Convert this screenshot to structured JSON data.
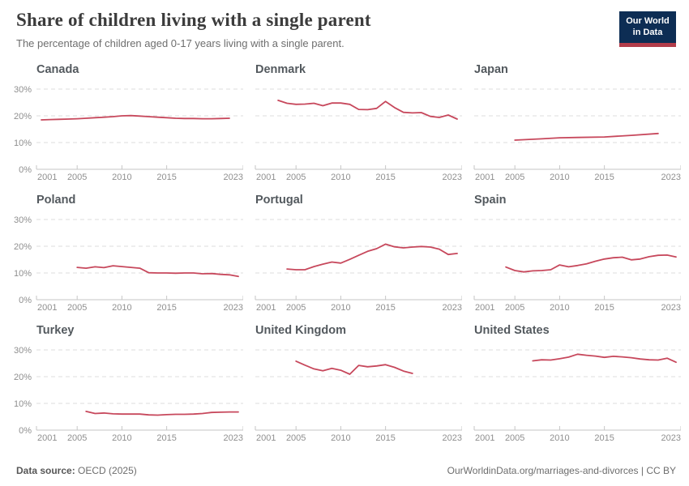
{
  "header": {
    "title": "Share of children living with a single parent",
    "subtitle": "The percentage of children aged 0-17 years living with a single parent.",
    "logo_line1": "Our World",
    "logo_line2": "in Data"
  },
  "footer": {
    "source_label": "Data source:",
    "source_value": "OECD (2025)",
    "citation": "OurWorldinData.org/marriages-and-divorces | CC BY"
  },
  "colors": {
    "line": "#c7485c",
    "grid": "#dedede",
    "axis": "#c6c6c6",
    "tick_label": "#8f8f8f",
    "facet_title": "#53595e",
    "logo_bg": "#0d2d54",
    "logo_red": "#b23c4a"
  },
  "chart_data": {
    "type": "line",
    "title": "Share of children living with a single parent",
    "subtitle": "The percentage of children aged 0-17 years living with a single parent.",
    "xlabel": "",
    "ylabel": "",
    "xlim": [
      2001,
      2023
    ],
    "ylim": [
      0,
      33
    ],
    "grid": "dashed horizontal at 10/20/30%",
    "legend": "none (one red series per facet)",
    "x_ticks": [
      2001,
      2005,
      2010,
      2015,
      2023
    ],
    "y_ticks": [
      0,
      10,
      20,
      30
    ],
    "y_tick_suffix": "%",
    "facets": [
      {
        "name": "Canada",
        "points": [
          [
            2001,
            18.5
          ],
          [
            2002,
            18.6
          ],
          [
            2003,
            18.7
          ],
          [
            2004,
            18.8
          ],
          [
            2005,
            18.9
          ],
          [
            2006,
            19.1
          ],
          [
            2007,
            19.3
          ],
          [
            2008,
            19.5
          ],
          [
            2009,
            19.7
          ],
          [
            2010,
            20.0
          ],
          [
            2011,
            20.1
          ],
          [
            2012,
            19.9
          ],
          [
            2013,
            19.7
          ],
          [
            2014,
            19.5
          ],
          [
            2015,
            19.3
          ],
          [
            2016,
            19.1
          ],
          [
            2017,
            19.0
          ],
          [
            2018,
            19.0
          ],
          [
            2019,
            18.9
          ],
          [
            2020,
            18.9
          ],
          [
            2021,
            19.0
          ],
          [
            2022,
            19.1
          ]
        ]
      },
      {
        "name": "Denmark",
        "points": [
          [
            2003,
            25.8
          ],
          [
            2004,
            24.7
          ],
          [
            2005,
            24.3
          ],
          [
            2006,
            24.4
          ],
          [
            2007,
            24.7
          ],
          [
            2008,
            23.8
          ],
          [
            2009,
            24.8
          ],
          [
            2010,
            24.8
          ],
          [
            2011,
            24.3
          ],
          [
            2012,
            22.4
          ],
          [
            2013,
            22.3
          ],
          [
            2014,
            22.8
          ],
          [
            2015,
            25.4
          ],
          [
            2016,
            23.1
          ],
          [
            2017,
            21.3
          ],
          [
            2018,
            21.1
          ],
          [
            2019,
            21.2
          ],
          [
            2020,
            19.8
          ],
          [
            2021,
            19.4
          ],
          [
            2022,
            20.3
          ],
          [
            2023,
            18.8
          ]
        ]
      },
      {
        "name": "Japan",
        "points": [
          [
            2005,
            10.9
          ],
          [
            2008,
            11.4
          ],
          [
            2010,
            11.8
          ],
          [
            2012,
            11.9
          ],
          [
            2015,
            12.1
          ],
          [
            2018,
            12.7
          ],
          [
            2021,
            13.4
          ]
        ]
      },
      {
        "name": "Poland",
        "points": [
          [
            2005,
            12.1
          ],
          [
            2006,
            11.8
          ],
          [
            2007,
            12.3
          ],
          [
            2008,
            12.0
          ],
          [
            2009,
            12.7
          ],
          [
            2010,
            12.4
          ],
          [
            2011,
            12.1
          ],
          [
            2012,
            11.8
          ],
          [
            2013,
            10.1
          ],
          [
            2014,
            10.0
          ],
          [
            2015,
            10.0
          ],
          [
            2016,
            9.9
          ],
          [
            2017,
            10.0
          ],
          [
            2018,
            10.0
          ],
          [
            2019,
            9.7
          ],
          [
            2020,
            9.8
          ],
          [
            2021,
            9.5
          ],
          [
            2022,
            9.3
          ],
          [
            2023,
            8.7
          ]
        ]
      },
      {
        "name": "Portugal",
        "points": [
          [
            2004,
            11.5
          ],
          [
            2005,
            11.2
          ],
          [
            2006,
            11.2
          ],
          [
            2007,
            12.4
          ],
          [
            2008,
            13.3
          ],
          [
            2009,
            14.1
          ],
          [
            2010,
            13.7
          ],
          [
            2011,
            15.1
          ],
          [
            2012,
            16.6
          ],
          [
            2013,
            18.1
          ],
          [
            2014,
            19.1
          ],
          [
            2015,
            20.8
          ],
          [
            2016,
            19.8
          ],
          [
            2017,
            19.4
          ],
          [
            2018,
            19.7
          ],
          [
            2019,
            19.9
          ],
          [
            2020,
            19.7
          ],
          [
            2021,
            18.9
          ],
          [
            2022,
            16.9
          ],
          [
            2023,
            17.3
          ]
        ]
      },
      {
        "name": "Spain",
        "points": [
          [
            2004,
            12.2
          ],
          [
            2005,
            10.9
          ],
          [
            2006,
            10.4
          ],
          [
            2007,
            10.8
          ],
          [
            2008,
            10.9
          ],
          [
            2009,
            11.2
          ],
          [
            2010,
            13.0
          ],
          [
            2011,
            12.3
          ],
          [
            2012,
            12.8
          ],
          [
            2013,
            13.4
          ],
          [
            2014,
            14.4
          ],
          [
            2015,
            15.2
          ],
          [
            2016,
            15.7
          ],
          [
            2017,
            15.9
          ],
          [
            2018,
            14.9
          ],
          [
            2019,
            15.2
          ],
          [
            2020,
            16.1
          ],
          [
            2021,
            16.6
          ],
          [
            2022,
            16.7
          ],
          [
            2023,
            16.0
          ]
        ]
      },
      {
        "name": "Turkey",
        "points": [
          [
            2006,
            7.0
          ],
          [
            2007,
            6.2
          ],
          [
            2008,
            6.4
          ],
          [
            2009,
            6.1
          ],
          [
            2010,
            6.0
          ],
          [
            2011,
            6.0
          ],
          [
            2012,
            6.0
          ],
          [
            2013,
            5.7
          ],
          [
            2014,
            5.6
          ],
          [
            2015,
            5.8
          ],
          [
            2016,
            5.9
          ],
          [
            2017,
            5.9
          ],
          [
            2018,
            6.0
          ],
          [
            2019,
            6.2
          ],
          [
            2020,
            6.6
          ],
          [
            2021,
            6.7
          ],
          [
            2022,
            6.8
          ],
          [
            2023,
            6.8
          ]
        ]
      },
      {
        "name": "United Kingdom",
        "points": [
          [
            2005,
            25.8
          ],
          [
            2006,
            24.3
          ],
          [
            2007,
            22.9
          ],
          [
            2008,
            22.2
          ],
          [
            2009,
            23.1
          ],
          [
            2010,
            22.4
          ],
          [
            2011,
            20.9
          ],
          [
            2012,
            24.2
          ],
          [
            2013,
            23.7
          ],
          [
            2014,
            24.0
          ],
          [
            2015,
            24.5
          ],
          [
            2016,
            23.5
          ],
          [
            2017,
            22.1
          ],
          [
            2018,
            21.2
          ]
        ]
      },
      {
        "name": "United States",
        "points": [
          [
            2007,
            25.9
          ],
          [
            2008,
            26.3
          ],
          [
            2009,
            26.2
          ],
          [
            2010,
            26.7
          ],
          [
            2011,
            27.3
          ],
          [
            2012,
            28.4
          ],
          [
            2013,
            28.0
          ],
          [
            2014,
            27.7
          ],
          [
            2015,
            27.2
          ],
          [
            2016,
            27.6
          ],
          [
            2017,
            27.4
          ],
          [
            2018,
            27.1
          ],
          [
            2019,
            26.6
          ],
          [
            2020,
            26.3
          ],
          [
            2021,
            26.2
          ],
          [
            2022,
            26.9
          ],
          [
            2023,
            25.4
          ]
        ]
      }
    ]
  }
}
